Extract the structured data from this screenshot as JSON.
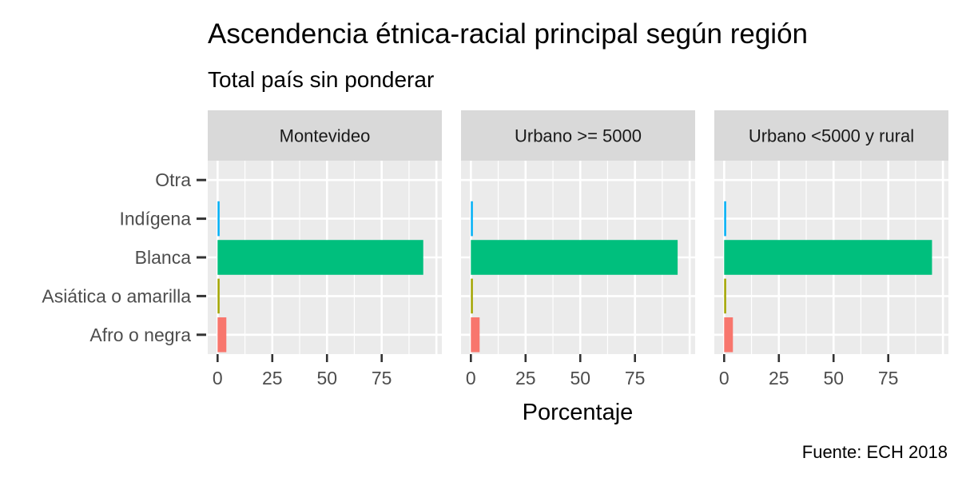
{
  "chart_data": {
    "type": "bar",
    "orientation": "horizontal",
    "title": "Ascendencia étnica-racial principal según región",
    "subtitle": "Total país sin ponderar",
    "xlabel": "Porcentaje",
    "ylabel": "",
    "caption": "Fuente: ECH 2018",
    "categories": [
      "Afro o negra",
      "Asiática o amarilla",
      "Blanca",
      "Indígena",
      "Otra"
    ],
    "colors": {
      "Afro o negra": "#F8766D",
      "Asiática o amarilla": "#A3A500",
      "Blanca": "#00BF7D",
      "Indígena": "#00B0F6",
      "Otra": "#E76BF3"
    },
    "xlim": [
      0,
      100
    ],
    "xticks": [
      0,
      25,
      50,
      75
    ],
    "grid": true,
    "legend": "none",
    "panels": [
      {
        "name": "Montevideo",
        "values": [
          4.0,
          0.1,
          94.0,
          0.7,
          0.0
        ]
      },
      {
        "name": "Urbano >= 5000",
        "values": [
          4.0,
          0.1,
          94.5,
          0.8,
          0.0
        ]
      },
      {
        "name": "Urbano <5000 y rural",
        "values": [
          4.0,
          0.1,
          95.0,
          0.8,
          0.0
        ]
      }
    ]
  }
}
